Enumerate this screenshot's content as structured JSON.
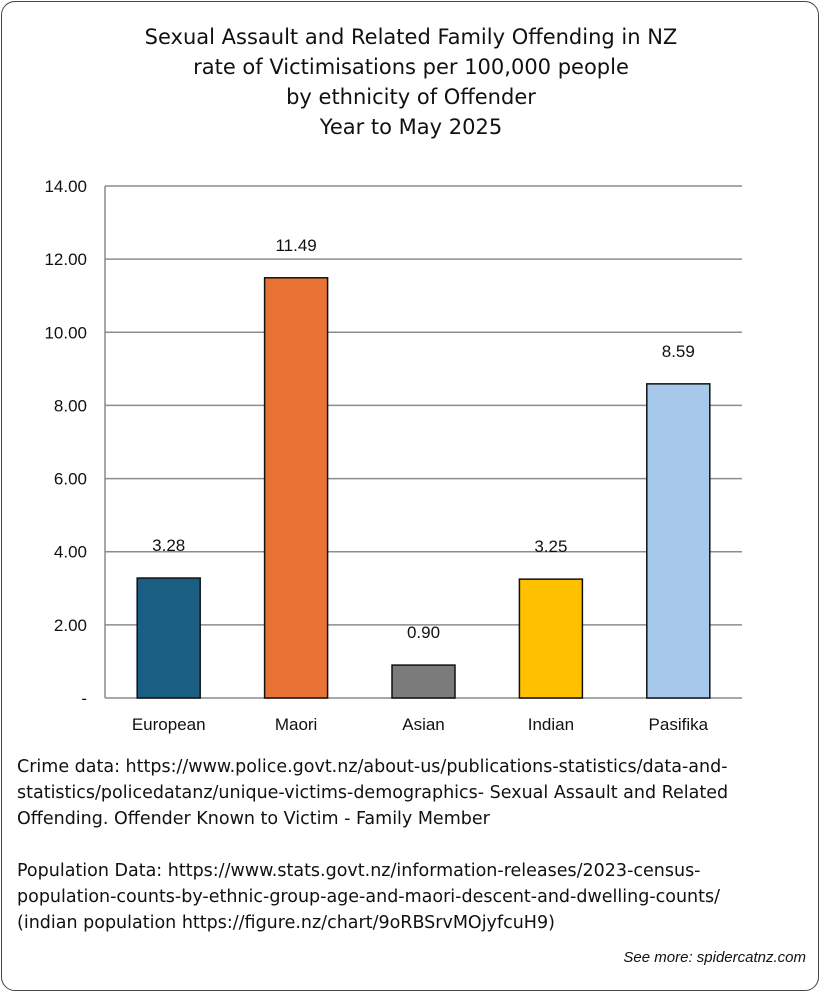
{
  "title_lines": [
    "Sexual Assault and Related Family Offending in NZ",
    "rate of Victimisations  per 100,000 people",
    "by ethnicity of Offender",
    "Year to May 2025"
  ],
  "chart_data": {
    "type": "bar",
    "categories": [
      "European",
      "Maori",
      "Asian",
      "Indian",
      "Pasifika"
    ],
    "values": [
      3.28,
      11.49,
      0.9,
      3.25,
      8.59
    ],
    "value_labels": [
      "3.28",
      "11.49",
      "0.90",
      "3.25",
      "8.59"
    ],
    "colors": [
      "#1a5e84",
      "#e97335",
      "#7b7b7b",
      "#ffc000",
      "#a6c8ea"
    ],
    "ylim": [
      0,
      14
    ],
    "yticks": [
      0,
      2,
      4,
      6,
      8,
      10,
      12,
      14
    ],
    "ytick_labels": [
      "-",
      "2.00",
      "4.00",
      "6.00",
      "8.00",
      "10.00",
      "12.00",
      "14.00"
    ],
    "grid": true,
    "xlabel": "",
    "ylabel": ""
  },
  "notes": {
    "crime": [
      "Crime data: https://www.police.govt.nz/about-us/publications-statistics/data-and-",
      "statistics/policedatanz/unique-victims-demographics- Sexual Assault and Related",
      "Offending. Offender Known to Victim - Family Member"
    ],
    "population": [
      "Population Data: https://www.stats.govt.nz/information-releases/2023-census-",
      "population-counts-by-ethnic-group-age-and-maori-descent-and-dwelling-counts/",
      "(indian population https://figure.nz/chart/9oRBSrvMOjyfcuH9)"
    ]
  },
  "credit": "See more: spidercatnz.com"
}
